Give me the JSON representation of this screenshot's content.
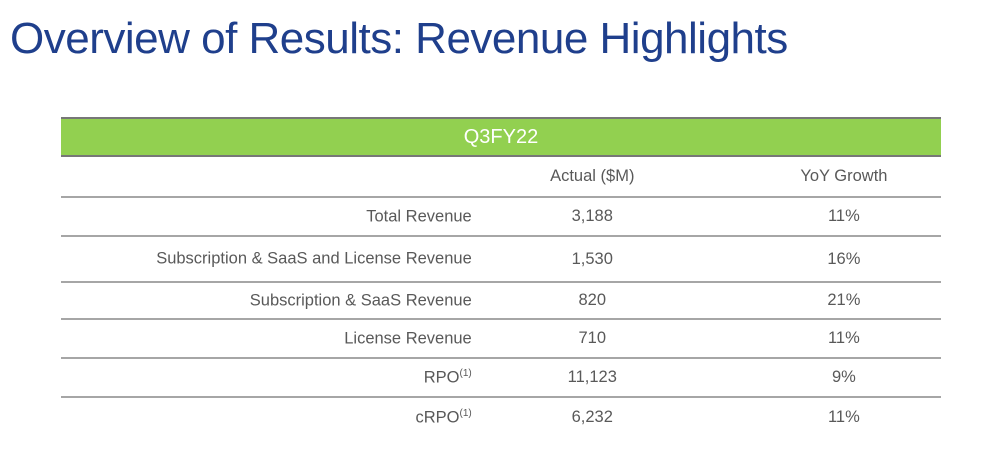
{
  "title": "Overview of Results: Revenue Highlights",
  "table": {
    "period": "Q3FY22",
    "headers": [
      "",
      "Actual ($M)",
      "YoY Growth"
    ],
    "rows": [
      {
        "label": "Total Revenue",
        "note": "",
        "actual": "3,188",
        "yoy": "11%"
      },
      {
        "label": "Subscription & SaaS and License Revenue",
        "note": "",
        "actual": "1,530",
        "yoy": "16%"
      },
      {
        "label": "Subscription & SaaS Revenue",
        "note": "",
        "actual": "820",
        "yoy": "21%"
      },
      {
        "label": "License Revenue",
        "note": "",
        "actual": "710",
        "yoy": "11%"
      },
      {
        "label": "RPO",
        "note": "(1)",
        "actual": "11,123",
        "yoy": "9%"
      },
      {
        "label": "cRPO",
        "note": "(1)",
        "actual": "6,232",
        "yoy": "11%"
      }
    ]
  }
}
